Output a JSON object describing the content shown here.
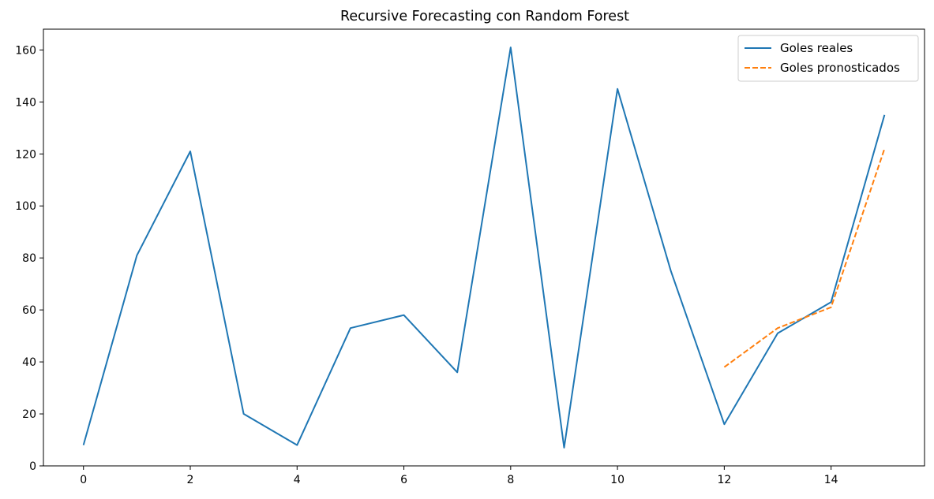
{
  "chart_data": {
    "type": "line",
    "title": "Recursive Forecasting con Random Forest",
    "xlabel": "",
    "ylabel": "",
    "xlim": [
      -0.75,
      15.75
    ],
    "ylim": [
      0,
      168
    ],
    "xticks": [
      0,
      2,
      4,
      6,
      8,
      10,
      12,
      14
    ],
    "yticks": [
      0,
      20,
      40,
      60,
      80,
      100,
      120,
      140,
      160
    ],
    "grid": false,
    "legend_position": "top-right",
    "series": [
      {
        "name": "Goles reales",
        "color": "#1f77b4",
        "style": "solid",
        "x": [
          0,
          1,
          2,
          3,
          4,
          5,
          6,
          7,
          8,
          9,
          10,
          11,
          12,
          13,
          14,
          15
        ],
        "y": [
          8,
          81,
          121,
          20,
          8,
          53,
          58,
          36,
          161,
          7,
          145,
          75,
          16,
          51,
          63,
          135
        ]
      },
      {
        "name": "Goles pronosticados",
        "color": "#ff7f0e",
        "style": "dashed",
        "x": [
          12,
          13,
          14,
          15
        ],
        "y": [
          38,
          53,
          61,
          122
        ]
      }
    ]
  }
}
